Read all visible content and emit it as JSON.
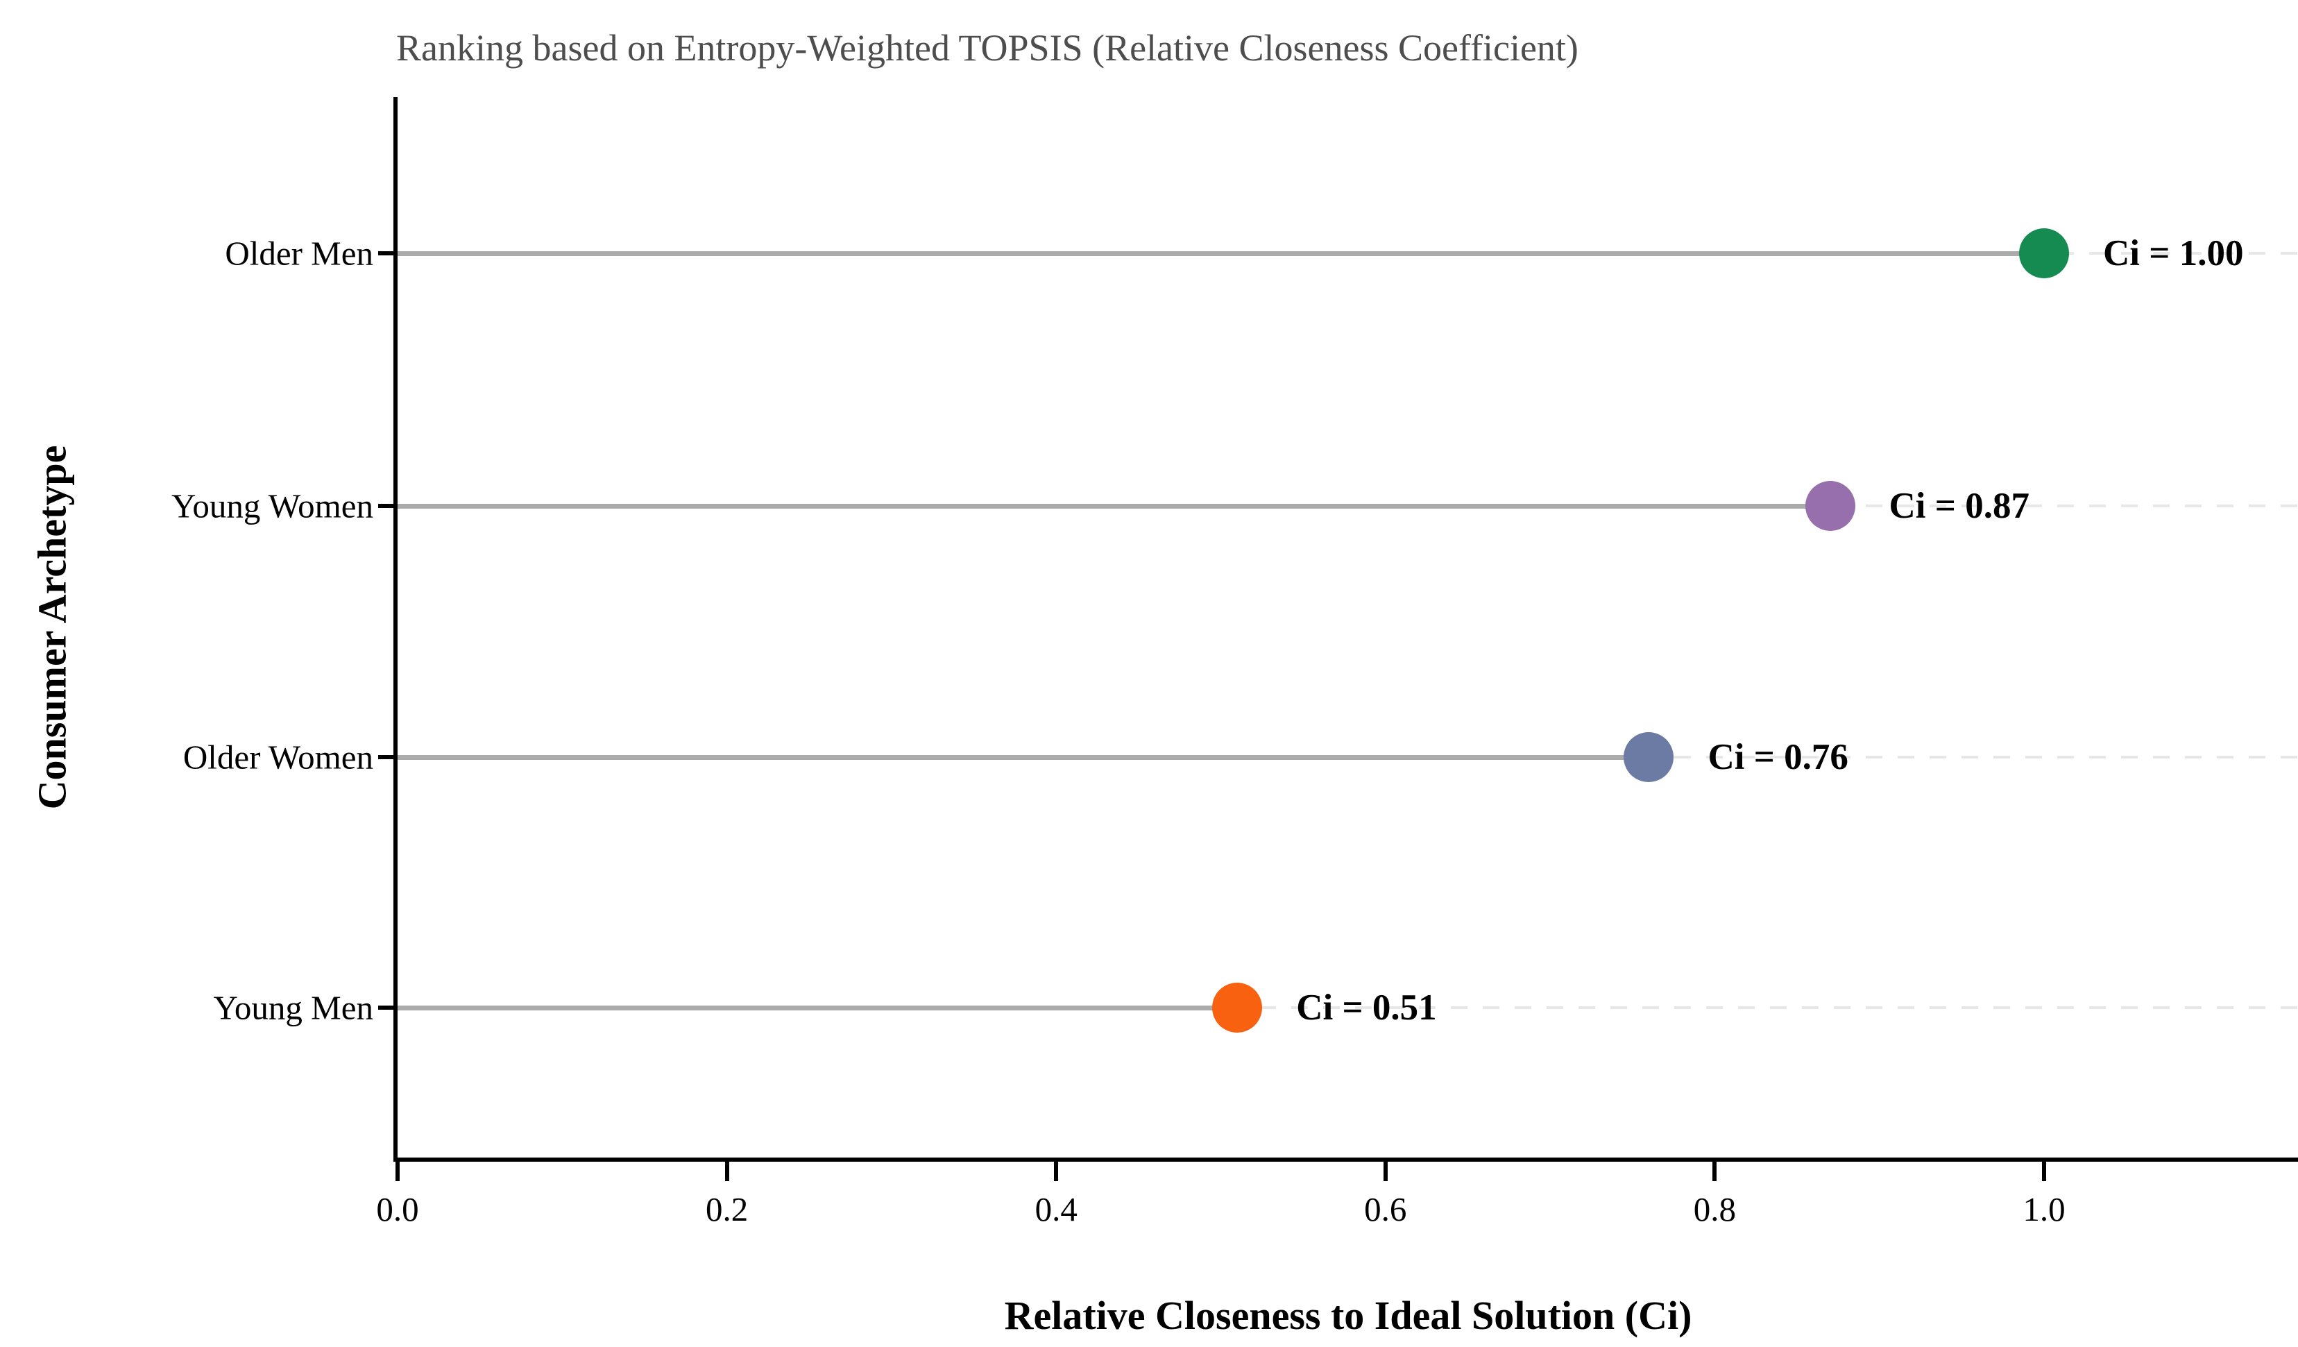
{
  "chart_data": {
    "type": "scatter",
    "variant": "lollipop-dot-plot",
    "title": "Ranking based on Entropy-Weighted TOPSIS (Relative Closeness Coefficient)",
    "xlabel": "Relative Closeness to Ideal Solution (Ci)",
    "ylabel": "Consumer Archetype",
    "categories": [
      "Older Men",
      "Young Women",
      "Older Women",
      "Young Men"
    ],
    "values": [
      1.0,
      0.87,
      0.76,
      0.51
    ],
    "point_labels": [
      "Ci = 1.00",
      "Ci = 0.87",
      "Ci = 0.76",
      "Ci = 0.51"
    ],
    "point_colors": [
      "#158B52",
      "#966FAC",
      "#6B7BA4",
      "#F7610F"
    ],
    "xlim": [
      0.0,
      1.15
    ],
    "xtick_labels": [
      "0.0",
      "0.2",
      "0.4",
      "0.6",
      "0.8",
      "1.0"
    ],
    "xtick_values": [
      0.0,
      0.2,
      0.4,
      0.6,
      0.8,
      1.0
    ],
    "grid": "horizontal dashed gridlines at each category row",
    "legend": "none",
    "style_colors": {
      "title_text": "#4D4D4D",
      "stem": "#ABABAB",
      "gridline": "#E7E7E7",
      "axis": "#000000",
      "text": "#000000"
    }
  }
}
